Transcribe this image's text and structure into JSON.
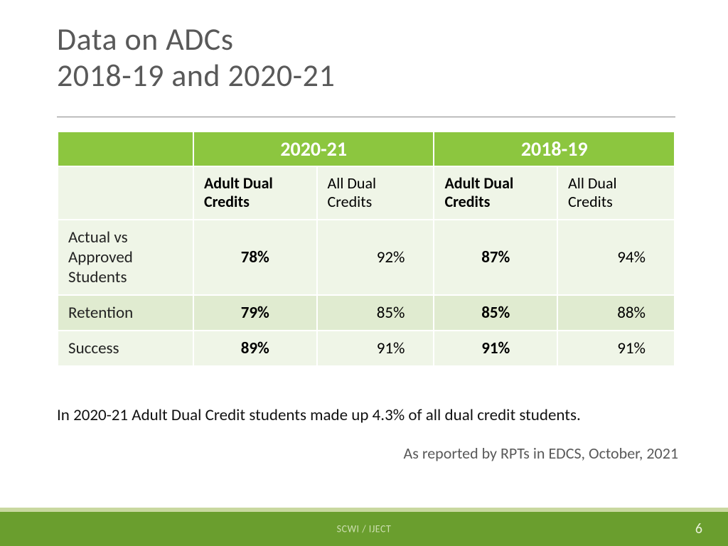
{
  "title": {
    "line1": "Data on ADCs",
    "line2": "2018-19 and 2020-21"
  },
  "table": {
    "years": {
      "left": "2020-21",
      "right": "2018-19"
    },
    "subheaders": {
      "adult_left": "Adult Dual Credits",
      "all_left": "All Dual Credits",
      "adult_right": "Adult Dual Credits",
      "all_right": "All Dual Credits"
    },
    "rows": [
      {
        "label": "Actual vs Approved Students",
        "adult_left": "78%",
        "all_left": "92%",
        "adult_right": "87%",
        "all_right": "94%"
      },
      {
        "label": "Retention",
        "adult_left": "79%",
        "all_left": "85%",
        "adult_right": "85%",
        "all_right": "88%"
      },
      {
        "label": "Success",
        "adult_left": "89%",
        "all_left": "91%",
        "adult_right": "91%",
        "all_right": "91%"
      }
    ],
    "colors": {
      "header_bg": "#8cc63f",
      "header_text": "#ffffff",
      "shade_a": "#eff5e7",
      "shade_b": "#e0ebd0",
      "cell_border": "#ffffff"
    },
    "fonts": {
      "year_header_pt": 28,
      "subheader_pt": 22,
      "body_pt": 23
    }
  },
  "note": "In 2020-21 Adult Dual Credit students made up 4.3% of all dual credit students.",
  "source": "As reported by RPTs in EDCS, October, 2021",
  "footer": {
    "org": "SCWI / IJECT",
    "page": "6",
    "bar_color": "#6a9e2e",
    "stripe_color": "#c9d8a0"
  }
}
